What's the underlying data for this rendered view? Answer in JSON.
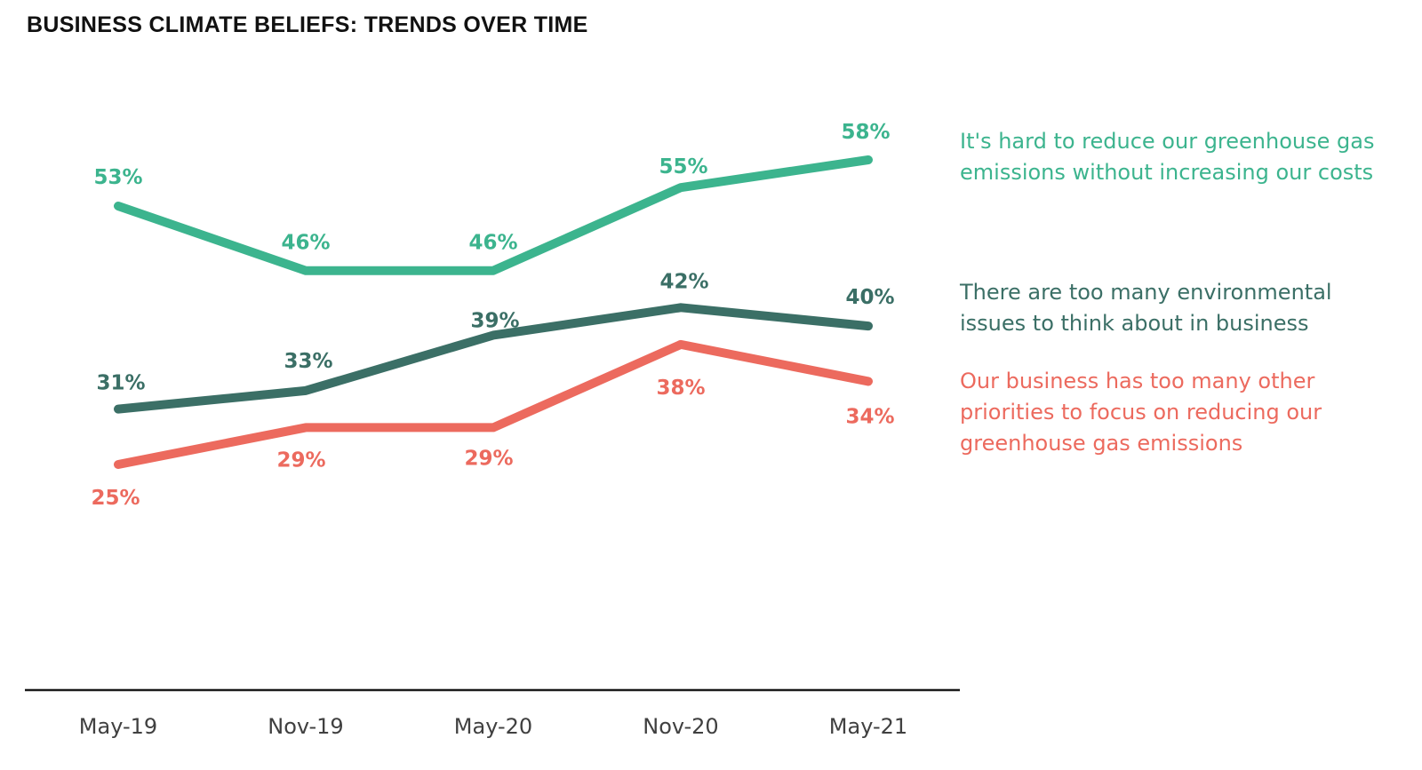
{
  "chart_data": {
    "type": "line",
    "title": "BUSINESS CLIMATE BELIEFS: TRENDS OVER TIME",
    "xlabel": "",
    "ylabel": "",
    "categories": [
      "May-19",
      "Nov-19",
      "May-20",
      "Nov-20",
      "May-21"
    ],
    "ylim": [
      0,
      100
    ],
    "grid": false,
    "legend": "right",
    "series": [
      {
        "name": "It's hard to reduce our greenhouse gas emissions without increasing our costs",
        "color": "#3cb48e",
        "values": [
          53,
          46,
          46,
          55,
          58
        ],
        "labels": [
          "53%",
          "46%",
          "46%",
          "55%",
          "58%"
        ]
      },
      {
        "name": "There are too many environmental issues to think about in business",
        "color": "#3b6f66",
        "values": [
          31,
          33,
          39,
          42,
          40
        ],
        "labels": [
          "31%",
          "33%",
          "39%",
          "42%",
          "40%"
        ]
      },
      {
        "name": "Our business has too many other priorities to focus on reducing our greenhouse gas emissions",
        "color": "#ec6a5e",
        "values": [
          25,
          29,
          29,
          38,
          34
        ],
        "labels": [
          "25%",
          "29%",
          "29%",
          "38%",
          "34%"
        ]
      }
    ]
  }
}
